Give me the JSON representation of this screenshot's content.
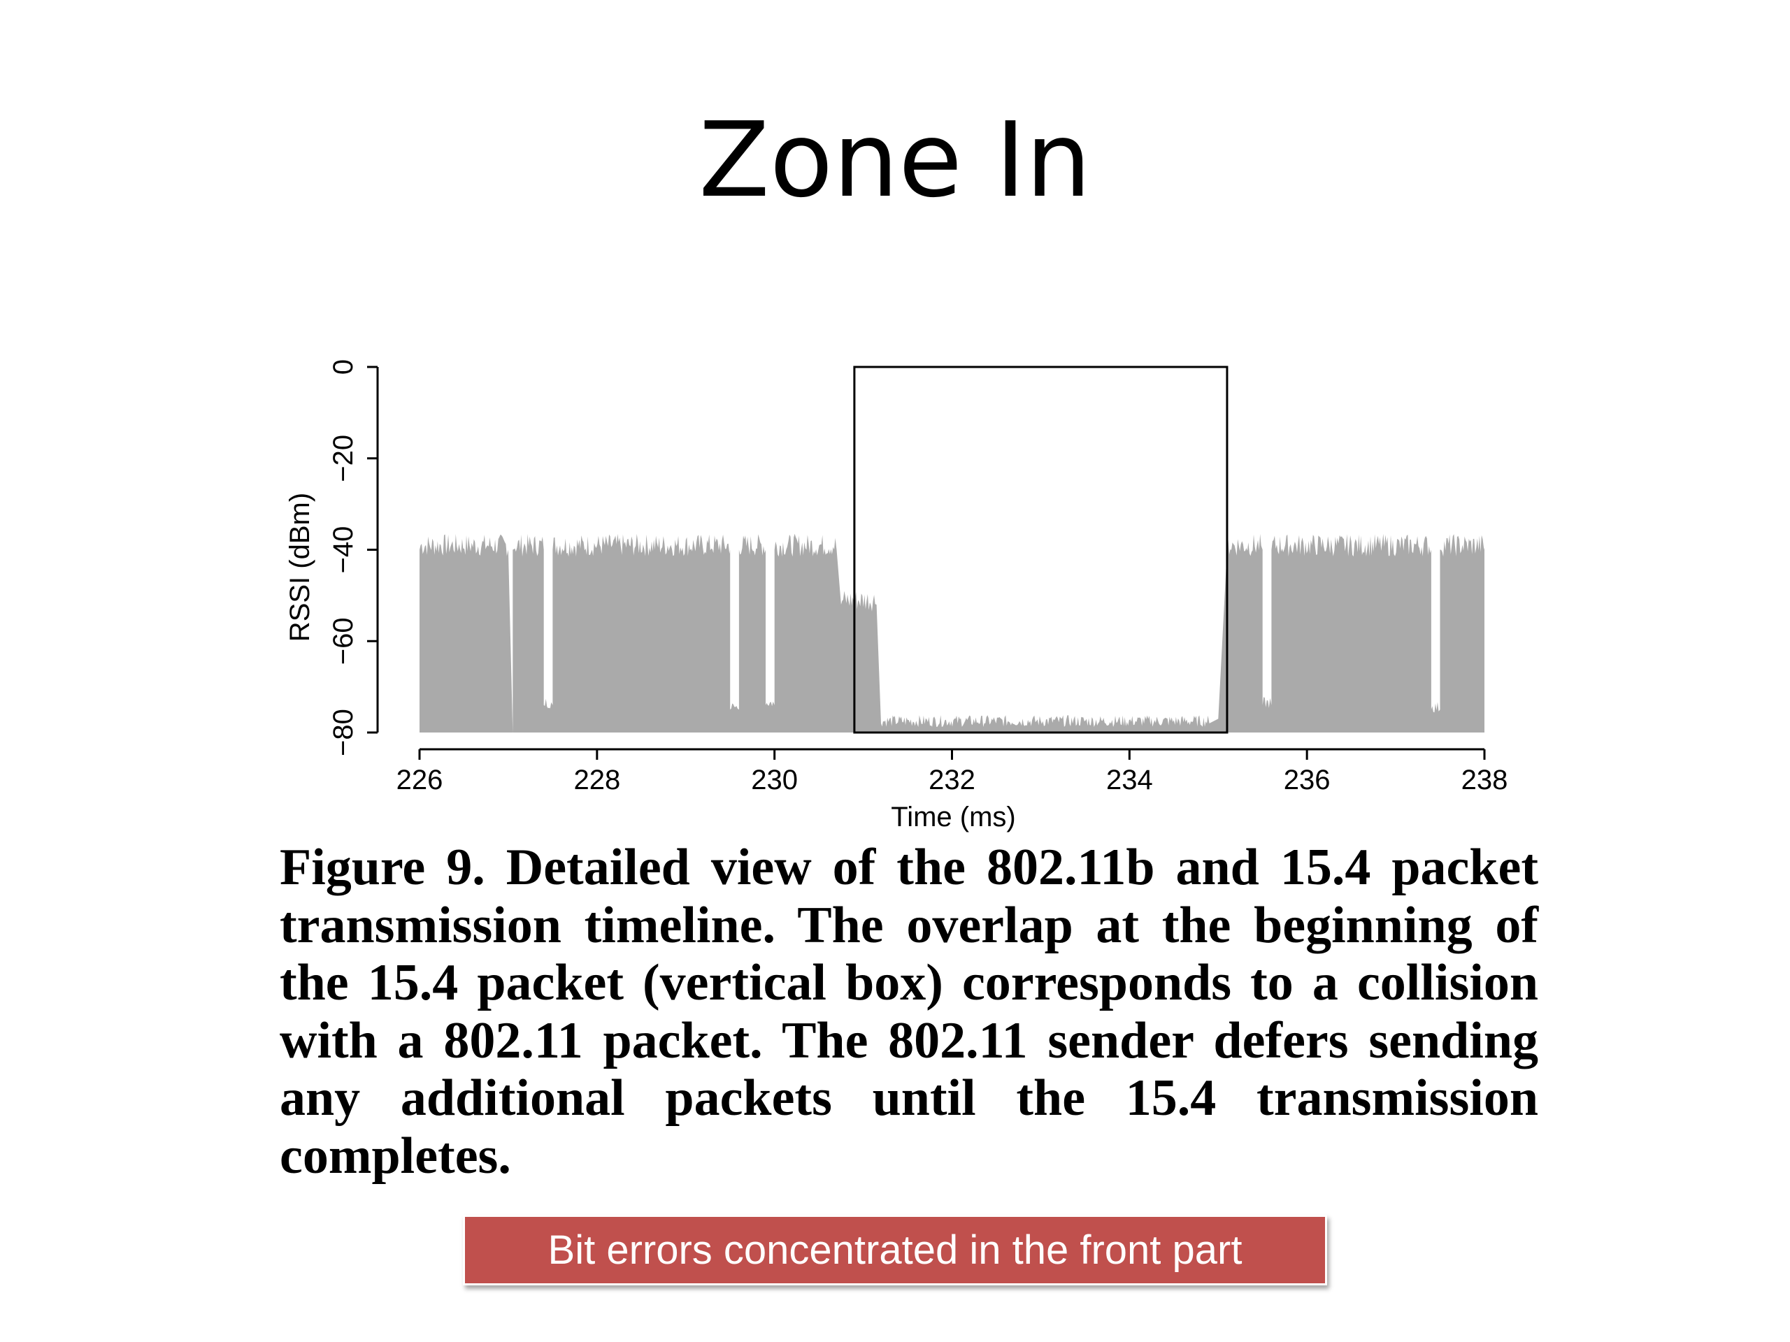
{
  "slide": {
    "title": "Zone In",
    "caption": "Figure 9.  Detailed view of the 802.11b and 15.4 packet transmission timeline.  The overlap at the beginning of the 15.4 packet (vertical box) corresponds to a collision with a 802.11 packet.  The 802.11 sender defers sending any additional packets until the 15.4 transmission completes.",
    "callout": "Bit errors concentrated in the front part"
  },
  "colors": {
    "fill": "#aaaaaa",
    "axis": "#000000",
    "callout_bg": "#c0504d",
    "callout_text": "#ffffff"
  },
  "chart_data": {
    "type": "area",
    "xlabel": "Time (ms)",
    "ylabel": "RSSI (dBm)",
    "xlim": [
      226,
      238
    ],
    "ylim": [
      -80,
      0
    ],
    "xticks": [
      226,
      228,
      230,
      232,
      234,
      236,
      238
    ],
    "yticks": [
      0,
      -20,
      -40,
      -60,
      -80
    ],
    "baseline": -80,
    "grid": false,
    "legend": "none",
    "series": [
      {
        "values": [
          [
            226.0,
            -40
          ],
          [
            227.0,
            -40
          ],
          [
            227.05,
            -80
          ],
          [
            227.05,
            -40
          ],
          [
            227.4,
            -40
          ],
          [
            227.4,
            -74
          ],
          [
            227.5,
            -74
          ],
          [
            227.5,
            -40
          ],
          [
            229.5,
            -40
          ],
          [
            229.5,
            -75
          ],
          [
            229.6,
            -75
          ],
          [
            229.6,
            -40
          ],
          [
            229.9,
            -40
          ],
          [
            229.9,
            -74
          ],
          [
            230.0,
            -74
          ],
          [
            230.0,
            -40
          ],
          [
            230.7,
            -40
          ],
          [
            230.75,
            -52
          ],
          [
            231.15,
            -52
          ],
          [
            231.2,
            -78
          ],
          [
            234.9,
            -78
          ],
          [
            235.0,
            -77
          ],
          [
            235.1,
            -40
          ],
          [
            235.5,
            -40
          ],
          [
            235.5,
            -74
          ],
          [
            235.6,
            -74
          ],
          [
            235.6,
            -40
          ],
          [
            237.4,
            -40
          ],
          [
            237.4,
            -75
          ],
          [
            237.5,
            -75
          ],
          [
            237.5,
            -40
          ],
          [
            238.0,
            -40
          ]
        ]
      }
    ],
    "annotations": [
      {
        "type": "box",
        "x": [
          230.9,
          235.1
        ],
        "y": [
          -80,
          0
        ],
        "label": ""
      }
    ]
  }
}
